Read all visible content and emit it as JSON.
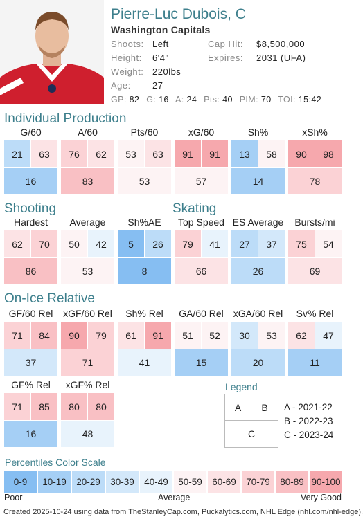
{
  "header": {
    "player_name": "Pierre-Luc Dubois, C",
    "team": "Washington Capitals",
    "info_left": [
      {
        "label": "Shoots:",
        "value": "Left"
      },
      {
        "label": "Height:",
        "value": "6'4\""
      },
      {
        "label": "Weight:",
        "value": "220lbs"
      },
      {
        "label": "Age:",
        "value": "27"
      }
    ],
    "info_right": [
      {
        "label": "Cap Hit:",
        "value": "$8,500,000"
      },
      {
        "label": "Expires:",
        "value": "2031 (UFA)"
      }
    ],
    "stats": [
      {
        "label": "GP:",
        "value": "82"
      },
      {
        "label": "G:",
        "value": "16"
      },
      {
        "label": "A:",
        "value": "24"
      },
      {
        "label": "Pts:",
        "value": "40"
      },
      {
        "label": "PIM:",
        "value": "70"
      },
      {
        "label": "TOI:",
        "value": "15:42"
      }
    ]
  },
  "sections": {
    "individual": "Individual Production",
    "shooting": "Shooting",
    "skating": "Skating",
    "onice": "On-Ice Relative"
  },
  "metrics": {
    "individual": [
      {
        "title": "G/60",
        "a": 21,
        "b": 63,
        "c": 16
      },
      {
        "title": "A/60",
        "a": 76,
        "b": 62,
        "c": 83
      },
      {
        "title": "Pts/60",
        "a": 53,
        "b": 63,
        "c": 53
      },
      {
        "title": "xG/60",
        "a": 91,
        "b": 91,
        "c": 57
      },
      {
        "title": "Sh%",
        "a": 13,
        "b": 58,
        "c": 14
      },
      {
        "title": "xSh%",
        "a": 90,
        "b": 98,
        "c": 78
      }
    ],
    "shooting_skating": [
      {
        "title": "Hardest",
        "a": 62,
        "b": 70,
        "c": 86
      },
      {
        "title": "Average",
        "a": 50,
        "b": 42,
        "c": 53
      },
      {
        "title": "Sh%AE",
        "a": 5,
        "b": 26,
        "c": 8
      },
      {
        "title": "Top Speed",
        "a": 79,
        "b": 41,
        "c": 66
      },
      {
        "title": "ES Average",
        "a": 27,
        "b": 37,
        "c": 26
      },
      {
        "title": "Bursts/mi",
        "a": 75,
        "b": 54,
        "c": 69
      }
    ],
    "onice_row1": [
      {
        "title": "GF/60 Rel",
        "a": 71,
        "b": 84,
        "c": 37
      },
      {
        "title": "xGF/60 Rel",
        "a": 90,
        "b": 79,
        "c": 71
      },
      {
        "title": "Sh% Rel",
        "a": 61,
        "b": 91,
        "c": 41
      },
      {
        "title": "GA/60 Rel",
        "a": 51,
        "b": 52,
        "c": 15
      },
      {
        "title": "xGA/60 Rel",
        "a": 30,
        "b": 53,
        "c": 20
      },
      {
        "title": "Sv% Rel",
        "a": 62,
        "b": 47,
        "c": 11
      }
    ],
    "onice_row2": [
      {
        "title": "GF% Rel",
        "a": 71,
        "b": 85,
        "c": 16
      },
      {
        "title": "xGF% Rel",
        "a": 80,
        "b": 80,
        "c": 48
      }
    ]
  },
  "legend": {
    "title": "Legend",
    "a": "A",
    "b": "B",
    "c": "C",
    "items": [
      "A - 2021-22",
      "B - 2022-23",
      "C - 2023-24"
    ]
  },
  "scale": {
    "title": "Percentiles Color Scale",
    "bins": [
      "0-9",
      "10-19",
      "20-29",
      "30-39",
      "40-49",
      "50-59",
      "60-69",
      "70-79",
      "80-89",
      "90-100"
    ],
    "colors": [
      "#86bef2",
      "#a5cff5",
      "#bcdcf8",
      "#d3e8fa",
      "#e8f3fc",
      "#fdf3f4",
      "#fce3e5",
      "#fbd2d5",
      "#f9c0c4",
      "#f6a8ad"
    ],
    "low_label": "Poor",
    "mid_label": "Average",
    "high_label": "Very Good"
  },
  "footer": "Created 2025-10-24 using data from TheStanleyCap.com, Puckalytics.com, NHL Edge (nhl.com/nhl-edge)."
}
